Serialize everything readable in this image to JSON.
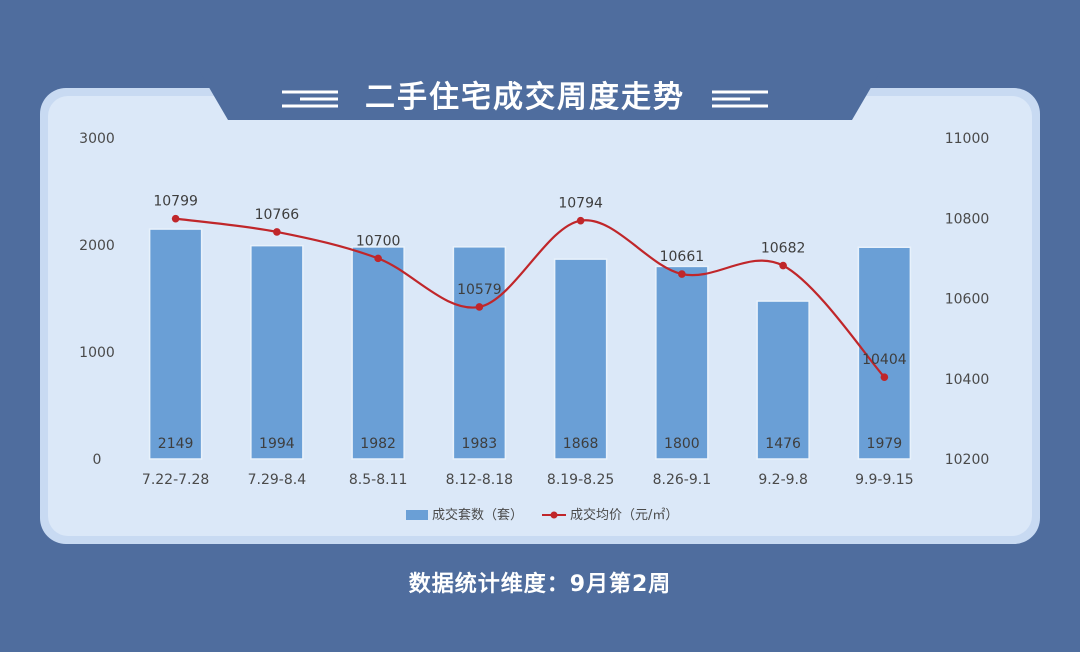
{
  "colors": {
    "background": "#4f6d9e",
    "panel": "#dbe8f8",
    "panel_border": "#bfd2ee",
    "bar": "#6a9fd6",
    "bar_border": "#e8f1fb",
    "line": "#c0262a",
    "text": "#4a4a4a"
  },
  "header": {
    "title": "二手住宅成交周度走势"
  },
  "footer": {
    "note": "数据统计维度：9月第2周"
  },
  "chart_data": {
    "type": "bar",
    "categories": [
      "7.22-7.28",
      "7.29-8.4",
      "8.5-8.11",
      "8.12-8.18",
      "8.19-8.25",
      "8.26-9.1",
      "9.2-9.8",
      "9.9-9.15"
    ],
    "series": [
      {
        "name": "成交套数（套）",
        "type": "bar",
        "axis": "left",
        "values": [
          2149,
          1994,
          1982,
          1983,
          1868,
          1800,
          1476,
          1979
        ]
      },
      {
        "name": "成交均价（元/㎡）",
        "type": "line",
        "axis": "right",
        "values": [
          10799,
          10766,
          10700,
          10579,
          10794,
          10661,
          10682,
          10404
        ]
      }
    ],
    "y_left": {
      "range": [
        0,
        3000
      ],
      "ticks": [
        "0",
        "1000",
        "2000",
        "3000"
      ]
    },
    "y_right": {
      "range": [
        10200,
        11000
      ],
      "ticks": [
        "10200",
        "10400",
        "10600",
        "10800",
        "11000"
      ]
    },
    "grid": false,
    "legend_position": "bottom"
  }
}
